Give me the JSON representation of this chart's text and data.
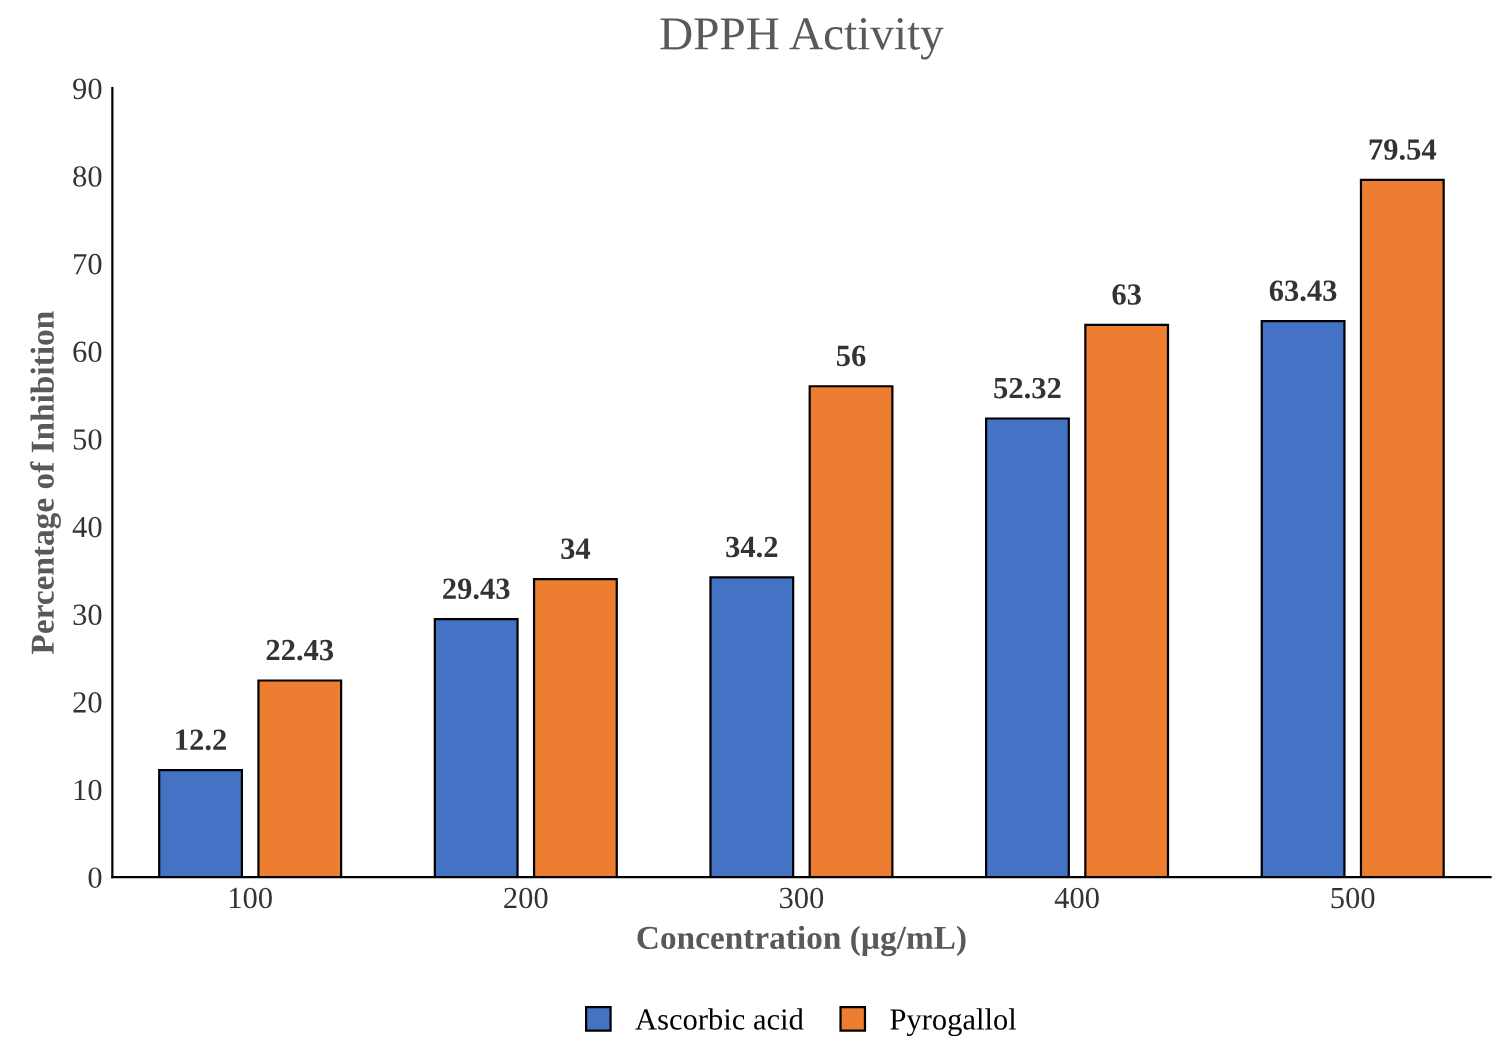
{
  "chart_data": {
    "type": "bar",
    "title": "DPPH Activity",
    "xlabel": "Concentration (µg/mL)",
    "ylabel": "Percentage of Inhibition",
    "categories": [
      "100",
      "200",
      "300",
      "400",
      "500"
    ],
    "series": [
      {
        "name": "Ascorbic acid",
        "color": "#4472c4",
        "values": [
          12.2,
          29.43,
          34.2,
          52.32,
          63.43
        ]
      },
      {
        "name": "Pyrogallol",
        "color": "#ed7d31",
        "values": [
          22.43,
          34,
          56,
          63,
          79.54
        ]
      }
    ],
    "ylim": [
      0,
      90
    ],
    "yticks": [
      0,
      10,
      20,
      30,
      40,
      50,
      60,
      70,
      80,
      90
    ],
    "grid": false,
    "legend": "bottom",
    "data_labels": true
  }
}
